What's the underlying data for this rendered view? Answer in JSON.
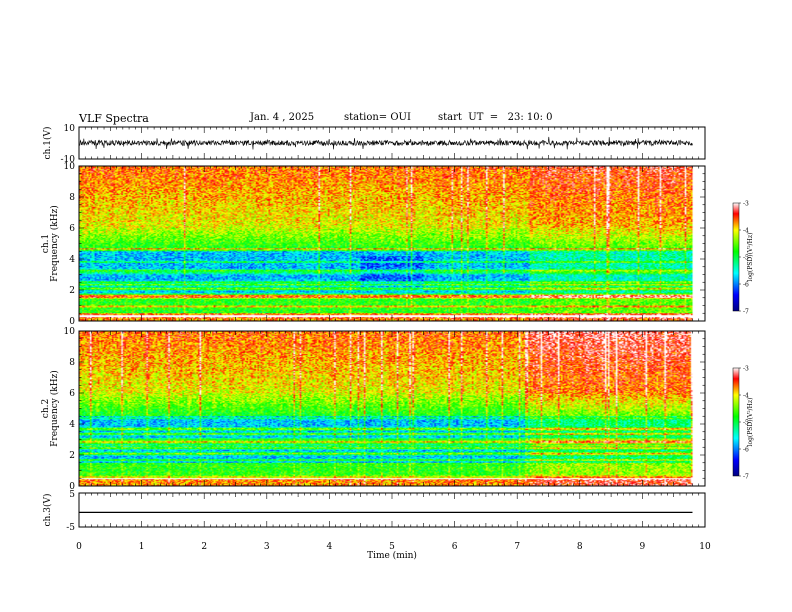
{
  "header": {
    "title": "VLF Spectra",
    "date": "Jan. 4 , 2025",
    "station": "station= OUI",
    "start": "start  UT  =   23: 10: 0"
  },
  "chart_data": [
    {
      "type": "line",
      "panel": "ch1-waveform",
      "ylabel": "ch.1(V)",
      "ylim": [
        -10,
        10
      ],
      "y_ticks": [
        "10",
        "-10"
      ],
      "xlim": [
        0,
        10
      ],
      "description_of_signal": "noisy waveform centered near 0 V with amplitude about ±3 V"
    },
    {
      "type": "heatmap",
      "panel": "ch1-spectrogram",
      "ylabel_channel": "ch.1",
      "ylabel": "Frequency  (kHz)",
      "ylim": [
        0,
        10
      ],
      "y_ticks": [
        "0",
        "2",
        "4",
        "6",
        "8",
        "10"
      ],
      "xlim": [
        0,
        10
      ],
      "data_end_min": 9.8,
      "transition_min": 7.2,
      "colorbar": {
        "label": "log(PSD)(V²/Hz)",
        "range": [
          -7,
          -3
        ],
        "ticks": [
          "-3",
          "-4",
          "-5",
          "-6",
          "-7"
        ]
      }
    },
    {
      "type": "heatmap",
      "panel": "ch2-spectrogram",
      "ylabel_channel": "ch.2",
      "ylabel": "Frequency  (kHz)",
      "ylim": [
        0,
        10
      ],
      "y_ticks": [
        "0",
        "2",
        "4",
        "6",
        "8",
        "10"
      ],
      "xlim": [
        0,
        10
      ],
      "data_end_min": 9.8,
      "transition_min": 7.2,
      "colorbar": {
        "label": "log(PSD)(V²/Hz)",
        "range": [
          -7,
          -3
        ],
        "ticks": [
          "-3",
          "-4",
          "-5",
          "-6",
          "-7"
        ]
      }
    },
    {
      "type": "line",
      "panel": "ch3-waveform",
      "ylabel": "ch.3(V)",
      "ylim": [
        -5,
        5
      ],
      "y_ticks": [
        "5",
        "-5"
      ],
      "xlim": [
        0,
        10
      ],
      "x": [
        0,
        9.8
      ],
      "y": [
        -0.7,
        -0.7
      ]
    }
  ],
  "x_axis": {
    "label": "Time  (min)",
    "ticks": [
      "0",
      "1",
      "2",
      "3",
      "4",
      "5",
      "6",
      "7",
      "8",
      "9",
      "10"
    ]
  },
  "colors": {
    "waveform": "#000000",
    "colormap": [
      "#00007f",
      "#0000ff",
      "#00ffff",
      "#00ff00",
      "#ffff00",
      "#ff0000",
      "#ffffff"
    ]
  }
}
